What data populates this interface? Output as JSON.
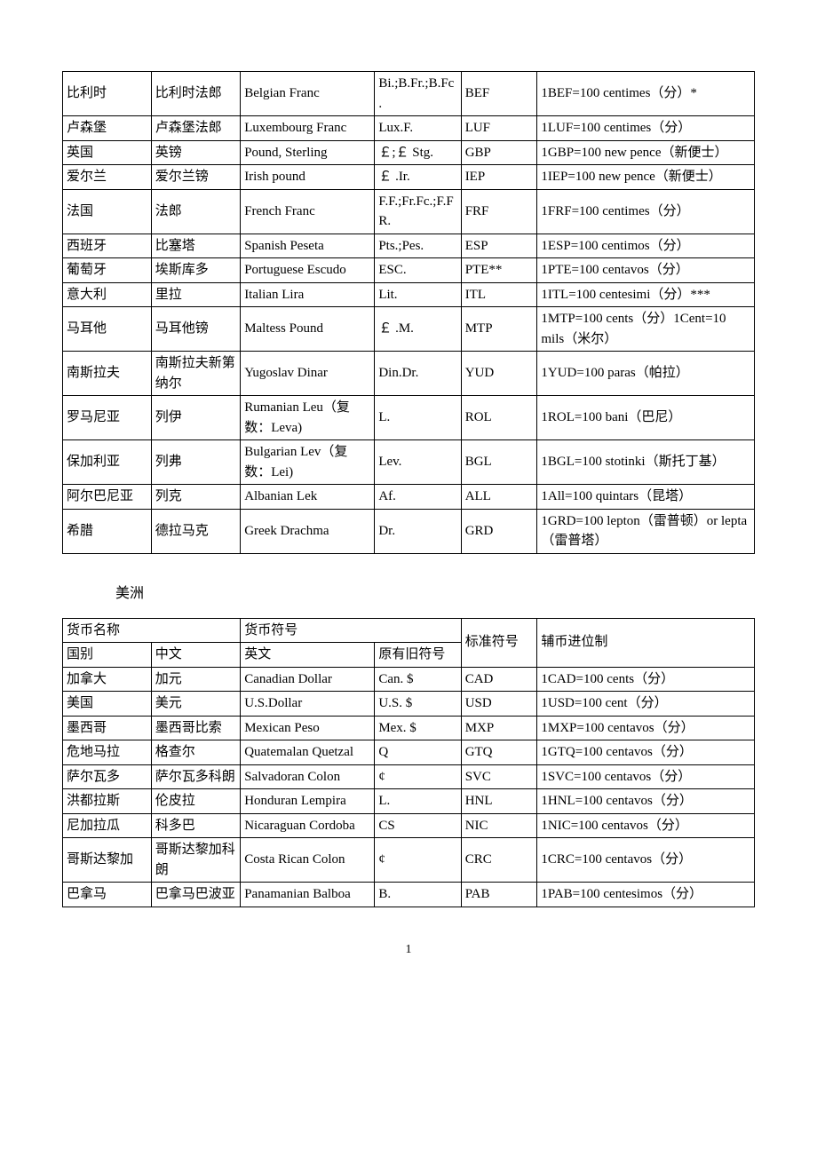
{
  "table1": {
    "rows": [
      {
        "col1": "比利时",
        "col2": "比利时法郎",
        "col3": "Belgian Franc",
        "col4": "Bi.;B.Fr.;B.Fc.",
        "col5": "BEF",
        "col6": "1BEF=100 centimes（分）*"
      },
      {
        "col1": "卢森堡",
        "col2": "卢森堡法郎",
        "col3": "Luxembourg Franc",
        "col4": "Lux.F.",
        "col5": "LUF",
        "col6": "1LUF=100 centimes（分）"
      },
      {
        "col1": "英国",
        "col2": "英镑",
        "col3": "Pound, Sterling",
        "col4": "￡;￡ Stg.",
        "col5": "GBP",
        "col6": "1GBP=100 new pence（新便士）"
      },
      {
        "col1": "爱尔兰",
        "col2": "爱尔兰镑",
        "col3": "Irish pound",
        "col4": "￡ .Ir.",
        "col5": "IEP",
        "col6": "1IEP=100 new pence（新便士）"
      },
      {
        "col1": "法国",
        "col2": "法郎",
        "col3": "French Franc",
        "col4": "F.F.;Fr.Fc.;F.FR.",
        "col5": "FRF",
        "col6": "1FRF=100 centimes（分）"
      },
      {
        "col1": "西班牙",
        "col2": "比塞塔",
        "col3": "Spanish Peseta",
        "col4": "Pts.;Pes.",
        "col5": "ESP",
        "col6": "1ESP=100 centimos（分）"
      },
      {
        "col1": "葡萄牙",
        "col2": "埃斯库多",
        "col3": "Portuguese Escudo",
        "col4": "ESC.",
        "col5": "PTE**",
        "col6": "1PTE=100 centavos（分）"
      },
      {
        "col1": "意大利",
        "col2": "里拉",
        "col3": "Italian Lira",
        "col4": "Lit.",
        "col5": "ITL",
        "col6": "1ITL=100 centesimi（分）***"
      },
      {
        "col1": "马耳他",
        "col2": "马耳他镑",
        "col3": "Maltess Pound",
        "col4": "￡ .M.",
        "col5": "MTP",
        "col6": "1MTP=100 cents（分）1Cent=10 mils（米尔）"
      },
      {
        "col1": "南斯拉夫",
        "col2": "南斯拉夫新第纳尔",
        "col3": "Yugoslav Dinar",
        "col4": "Din.Dr.",
        "col5": "YUD",
        "col6": "1YUD=100 paras（帕拉）"
      },
      {
        "col1": "罗马尼亚",
        "col2": "列伊",
        "col3": "Rumanian Leu（复数：Leva)",
        "col4": "L.",
        "col5": "ROL",
        "col6": "1ROL=100 bani（巴尼）"
      },
      {
        "col1": "保加利亚",
        "col2": "列弗",
        "col3": "Bulgarian Lev（复数：Lei)",
        "col4": "Lev.",
        "col5": "BGL",
        "col6": "1BGL=100 stotinki（斯托丁基）"
      },
      {
        "col1": "阿尔巴尼亚",
        "col2": "列克",
        "col3": "Albanian Lek",
        "col4": "Af.",
        "col5": "ALL",
        "col6": "1All=100 quintars（昆塔）"
      },
      {
        "col1": "希腊",
        "col2": "德拉马克",
        "col3": "Greek Drachma",
        "col4": "Dr.",
        "col5": "GRD",
        "col6": "1GRD=100 lepton（雷普顿）or lepta（雷普塔）"
      }
    ]
  },
  "section_title": "美洲",
  "table2": {
    "header": {
      "currency_name": "货币名称",
      "currency_symbol": "货币符号",
      "standard_symbol": "标准符号",
      "sub_currency": "辅币进位制",
      "country": "国别",
      "chinese": "中文",
      "english": "英文",
      "old_symbol": "原有旧符号"
    },
    "rows": [
      {
        "col1": "加拿大",
        "col2": "加元",
        "col3": "Canadian Dollar",
        "col4": "Can. $",
        "col5": "CAD",
        "col6": "1CAD=100 cents（分）"
      },
      {
        "col1": "美国",
        "col2": "美元",
        "col3": "U.S.Dollar",
        "col4": "U.S. $",
        "col5": "USD",
        "col6": "1USD=100 cent（分）"
      },
      {
        "col1": "墨西哥",
        "col2": "墨西哥比索",
        "col3": "Mexican Peso",
        "col4": "Mex. $",
        "col5": "MXP",
        "col6": "1MXP=100 centavos（分）"
      },
      {
        "col1": "危地马拉",
        "col2": "格查尔",
        "col3": "Quatemalan Quetzal",
        "col4": "Q",
        "col5": "GTQ",
        "col6": "1GTQ=100 centavos（分）"
      },
      {
        "col1": "萨尔瓦多",
        "col2": "萨尔瓦多科朗",
        "col3": "Salvadoran Colon",
        "col4": "¢",
        "col5": "SVC",
        "col6": "1SVC=100 centavos（分）"
      },
      {
        "col1": "洪都拉斯",
        "col2": "伦皮拉",
        "col3": "Honduran Lempira",
        "col4": "L.",
        "col5": "HNL",
        "col6": "1HNL=100 centavos（分）"
      },
      {
        "col1": "尼加拉瓜",
        "col2": "科多巴",
        "col3": "Nicaraguan Cordoba",
        "col4": "CS",
        "col5": "NIC",
        "col6": "1NIC=100 centavos（分）"
      },
      {
        "col1": "哥斯达黎加",
        "col2": "哥斯达黎加科朗",
        "col3": "Costa Rican Colon",
        "col4": "¢",
        "col5": "CRC",
        "col6": "1CRC=100 centavos（分）"
      },
      {
        "col1": "巴拿马",
        "col2": "巴拿马巴波亚",
        "col3": "Panamanian Balboa",
        "col4": "B.",
        "col5": "PAB",
        "col6": "1PAB=100 centesimos（分）"
      }
    ]
  },
  "page_number": "1"
}
